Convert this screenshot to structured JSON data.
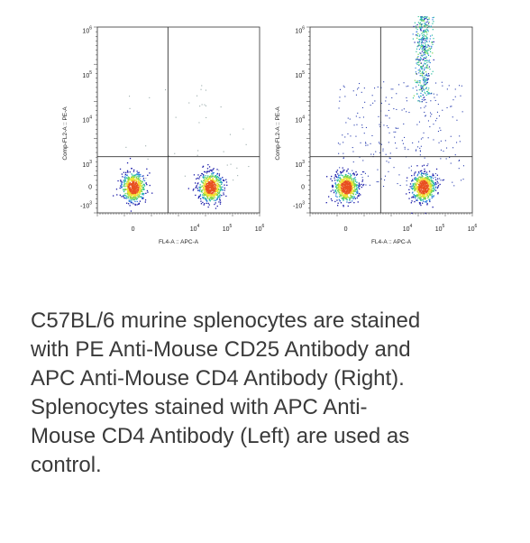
{
  "chart_data": [
    {
      "type": "scatter",
      "panel": "left",
      "xlabel": "FL4-A :: APC-A",
      "ylabel": "Comp-FL2-A :: PE-A",
      "x_ticks": [
        {
          "base": "0",
          "exp": ""
        },
        {
          "base": "10",
          "exp": "4"
        },
        {
          "base": "10",
          "exp": "5"
        },
        {
          "base": "10",
          "exp": "6"
        }
      ],
      "y_ticks": [
        {
          "base": "10",
          "exp": "6"
        },
        {
          "base": "10",
          "exp": "5"
        },
        {
          "base": "10",
          "exp": "4"
        },
        {
          "base": "10",
          "exp": "3"
        },
        {
          "base": "0",
          "exp": ""
        },
        {
          "base": "-10",
          "exp": "3"
        }
      ],
      "gates": {
        "x": 1500,
        "y": 1500
      },
      "populations": [
        {
          "x_center": 0,
          "y_center": 0,
          "density": "high"
        },
        {
          "x_center": 30000,
          "y_center": 0,
          "density": "high"
        }
      ],
      "colors": [
        "#1a1aa8",
        "#2f7fe0",
        "#2bbfa0",
        "#7ad64a",
        "#f0e030",
        "#e85020"
      ]
    },
    {
      "type": "scatter",
      "panel": "right",
      "xlabel": "FL4-A :: APC-A",
      "ylabel": "Comp-FL2-A :: PE-A",
      "x_ticks": [
        {
          "base": "0",
          "exp": ""
        },
        {
          "base": "10",
          "exp": "4"
        },
        {
          "base": "10",
          "exp": "5"
        },
        {
          "base": "10",
          "exp": "6"
        }
      ],
      "y_ticks": [
        {
          "base": "10",
          "exp": "6"
        },
        {
          "base": "10",
          "exp": "5"
        },
        {
          "base": "10",
          "exp": "4"
        },
        {
          "base": "10",
          "exp": "3"
        },
        {
          "base": "0",
          "exp": ""
        },
        {
          "base": "-10",
          "exp": "3"
        }
      ],
      "gates": {
        "x": 1500,
        "y": 1500
      },
      "populations": [
        {
          "x_center": 0,
          "y_center": 0,
          "density": "high"
        },
        {
          "x_center": 30000,
          "y_center": 0,
          "density": "high"
        },
        {
          "x_center": 30000,
          "y_center": 20000,
          "density": "medium"
        }
      ],
      "colors": [
        "#1a1aa8",
        "#2f7fe0",
        "#2bbfa0",
        "#7ad64a",
        "#f0e030",
        "#e85020"
      ]
    }
  ],
  "caption": {
    "lines": [
      "C57BL/6 murine splenocytes are stained",
      "with PE Anti-Mouse CD25 Antibody and",
      "APC Anti-Mouse CD4 Antibody (Right).",
      "Splenocytes stained with APC Anti-",
      "Mouse CD4 Antibody (Left) are used as",
      "control."
    ]
  }
}
